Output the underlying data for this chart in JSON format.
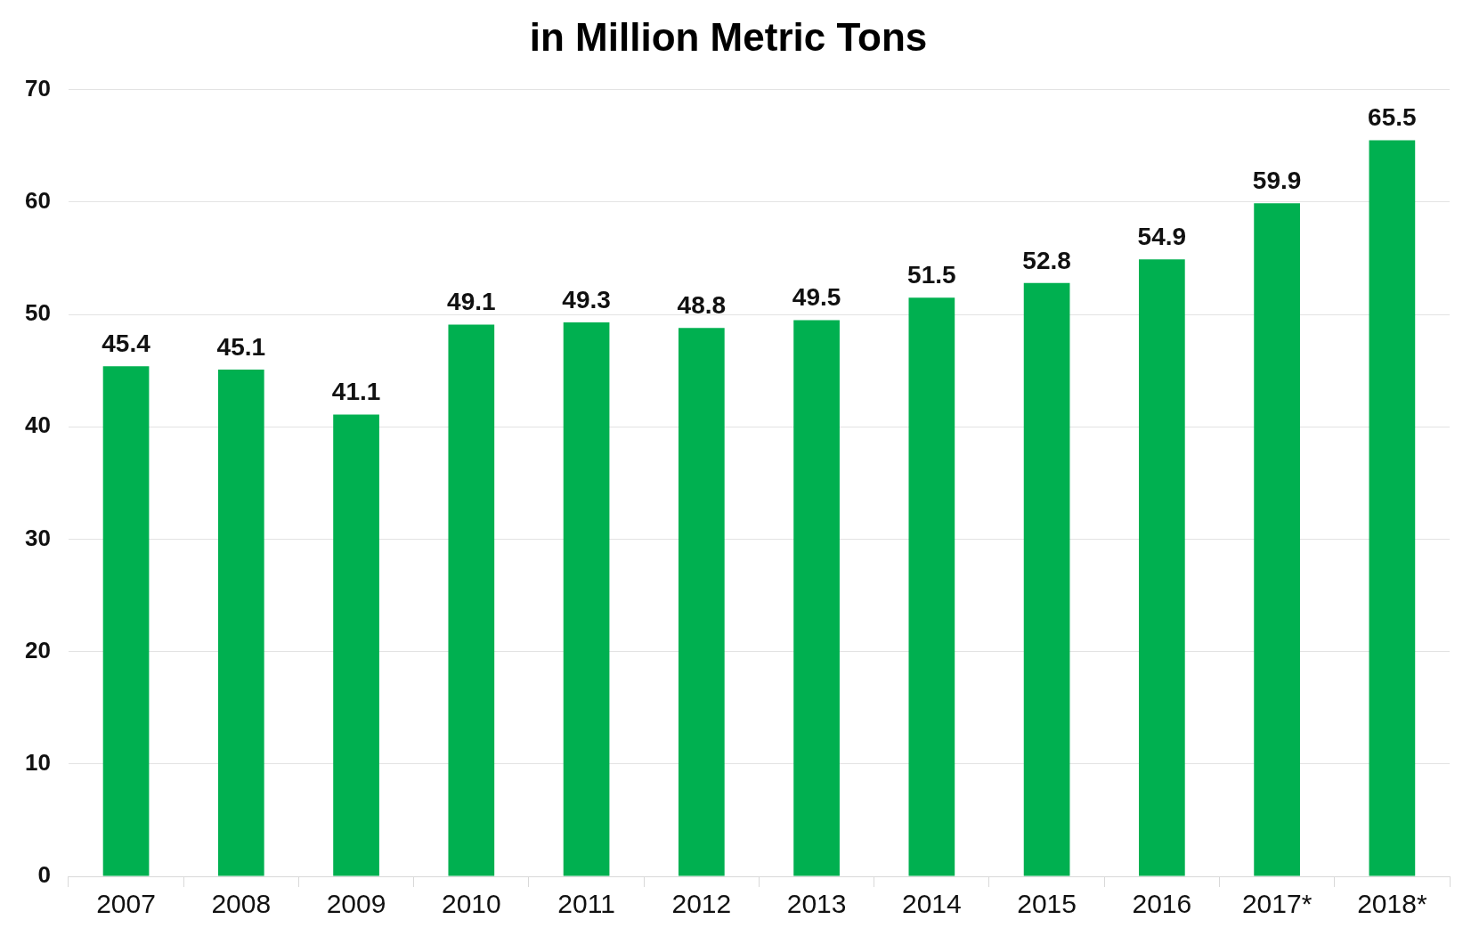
{
  "chart_data": {
    "type": "bar",
    "title": "in Million Metric Tons",
    "categories": [
      "2007",
      "2008",
      "2009",
      "2010",
      "2011",
      "2012",
      "2013",
      "2014",
      "2015",
      "2016",
      "2017*",
      "2018*"
    ],
    "values": [
      45.4,
      45.1,
      41.1,
      49.1,
      49.3,
      48.8,
      49.5,
      51.5,
      52.8,
      54.9,
      59.9,
      65.5
    ],
    "color": "#00b050",
    "ylim": [
      0,
      70
    ],
    "yticks": [
      0,
      10,
      20,
      30,
      40,
      50,
      60,
      70
    ],
    "grid": "y",
    "data_labels": true,
    "legend": false
  }
}
